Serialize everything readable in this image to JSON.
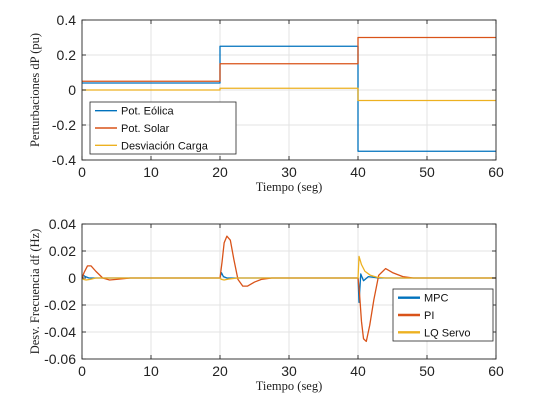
{
  "chart_data": [
    {
      "type": "line",
      "title": "",
      "xlabel": "Tiempo (seg)",
      "ylabel": "Perturbaciones dP (pu)",
      "xlim": [
        0,
        60
      ],
      "ylim": [
        -0.4,
        0.4
      ],
      "xticks": [
        0,
        10,
        20,
        30,
        40,
        50,
        60
      ],
      "yticks": [
        -0.4,
        -0.2,
        0,
        0.2,
        0.4
      ],
      "ytick_labels": [
        "-0.4",
        "-0.2",
        "0",
        "0.2",
        "0.4"
      ],
      "grid": true,
      "legend_position": "bottom-left",
      "series": [
        {
          "name": "Pot. Eólica",
          "color": "#0072BD",
          "x": [
            0,
            20,
            20,
            40,
            40,
            60
          ],
          "y": [
            0.04,
            0.04,
            0.25,
            0.25,
            -0.35,
            -0.35
          ]
        },
        {
          "name": "Pot. Solar",
          "color": "#D95319",
          "x": [
            0,
            20,
            20,
            40,
            40,
            60
          ],
          "y": [
            0.05,
            0.05,
            0.15,
            0.15,
            0.3,
            0.3
          ]
        },
        {
          "name": "Desviación Carga",
          "color": "#EDB120",
          "x": [
            0,
            20,
            20,
            40,
            40,
            60
          ],
          "y": [
            0.0,
            0.0,
            0.01,
            0.01,
            -0.06,
            -0.06
          ]
        }
      ]
    },
    {
      "type": "line",
      "title": "",
      "xlabel": "Tiempo (seg)",
      "ylabel": "Desv. Frecuencia df (Hz)",
      "xlim": [
        0,
        60
      ],
      "ylim": [
        -0.06,
        0.04
      ],
      "xticks": [
        0,
        10,
        20,
        30,
        40,
        50,
        60
      ],
      "yticks": [
        -0.06,
        -0.04,
        -0.02,
        0,
        0.02,
        0.04
      ],
      "ytick_labels": [
        "-0.06",
        "-0.04",
        "-0.02",
        "0",
        "0.02",
        "0.04"
      ],
      "grid": true,
      "legend_position": "bottom-right",
      "series": [
        {
          "name": "MPC",
          "color": "#0072BD",
          "x": [
            0,
            0.2,
            0.5,
            1.0,
            2.0,
            20,
            20.2,
            20.5,
            21,
            22,
            40,
            40.15,
            40.4,
            40.8,
            41.5,
            43,
            60
          ],
          "y": [
            0,
            0.002,
            0.001,
            0,
            0,
            0,
            0.004,
            0.001,
            0,
            0,
            0,
            -0.018,
            0.003,
            -0.002,
            0.001,
            0,
            0
          ]
        },
        {
          "name": "PI",
          "color": "#D95319",
          "x": [
            0,
            0.3,
            0.8,
            1.3,
            2.0,
            3.0,
            4.0,
            5.0,
            7.0,
            20,
            20.3,
            20.6,
            21.0,
            21.5,
            22.0,
            22.6,
            23.3,
            24.0,
            25.0,
            26.0,
            27.5,
            29,
            40,
            40.2,
            40.5,
            40.8,
            41.2,
            41.7,
            42.3,
            43.0,
            44.0,
            45.0,
            46.5,
            48,
            60
          ],
          "y": [
            0,
            0.004,
            0.009,
            0.009,
            0.005,
            0.0,
            -0.0015,
            -0.001,
            0,
            0,
            0.012,
            0.026,
            0.031,
            0.028,
            0.014,
            -0.001,
            -0.006,
            -0.006,
            -0.003,
            -0.001,
            0,
            0,
            0,
            -0.01,
            -0.032,
            -0.045,
            -0.047,
            -0.035,
            -0.016,
            0.002,
            0.007,
            0.004,
            0.001,
            0,
            0
          ]
        },
        {
          "name": "LQ Servo",
          "color": "#EDB120",
          "x": [
            0,
            0.2,
            0.6,
            1.2,
            2.0,
            3.0,
            20,
            20.2,
            20.6,
            21.2,
            22.5,
            40,
            40.15,
            40.5,
            41.0,
            41.8,
            42.8,
            44.0,
            60
          ],
          "y": [
            0,
            -0.001,
            -0.0015,
            -0.001,
            0,
            0,
            0,
            -0.001,
            -0.0015,
            -0.0008,
            0,
            0,
            0.016,
            0.01,
            0.005,
            0.002,
            0.0005,
            0,
            0
          ]
        }
      ]
    }
  ]
}
